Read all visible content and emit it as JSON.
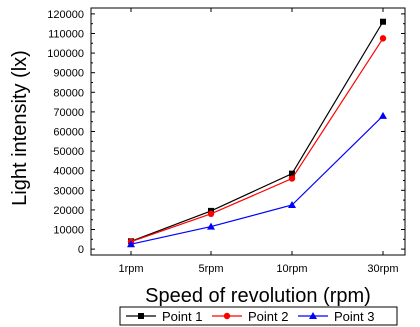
{
  "chart_data": {
    "type": "line",
    "categories": [
      "1rpm",
      "5rpm",
      "10rpm",
      "30rpm"
    ],
    "xlabel": "Speed of revolution (rpm)",
    "ylabel": "Light intensity (lx)",
    "ylim": [
      -3000,
      123000
    ],
    "yticks": [
      0,
      10000,
      20000,
      30000,
      40000,
      50000,
      60000,
      70000,
      80000,
      90000,
      100000,
      110000,
      120000
    ],
    "legend_position": "bottom",
    "grid": false,
    "series": [
      {
        "name": "Point 1",
        "values": [
          4000,
          19500,
          38500,
          116000
        ],
        "color": "#000000",
        "marker": "square"
      },
      {
        "name": "Point 2",
        "values": [
          3800,
          18000,
          36000,
          107500
        ],
        "color": "#ff0000",
        "marker": "circle"
      },
      {
        "name": "Point 3",
        "values": [
          2500,
          11500,
          22500,
          68000
        ],
        "color": "#0000ff",
        "marker": "triangle"
      }
    ]
  }
}
